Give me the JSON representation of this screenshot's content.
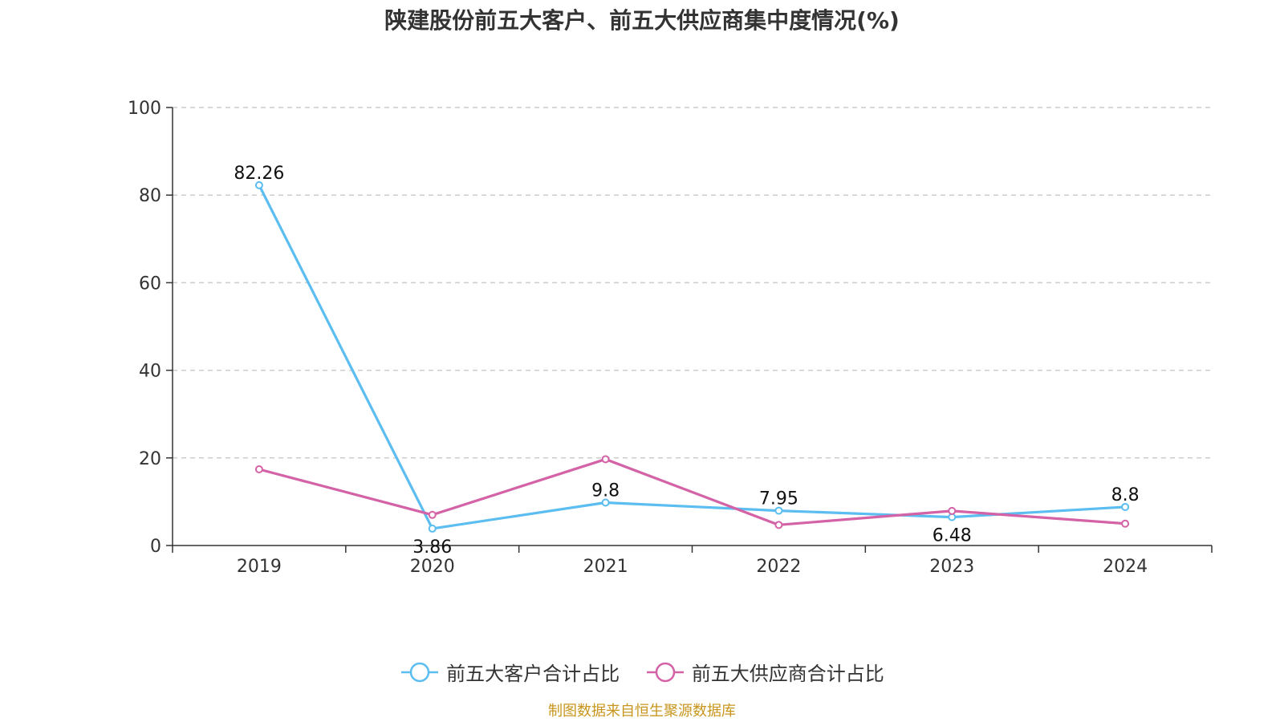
{
  "chart_data": {
    "type": "line",
    "title": "陕建股份前五大客户、前五大供应商集中度情况(%)",
    "categories": [
      "2019",
      "2020",
      "2021",
      "2022",
      "2023",
      "2024"
    ],
    "ylim": [
      0,
      100
    ],
    "yticks": [
      0,
      20,
      40,
      60,
      80,
      100
    ],
    "grid": "horizontal-dashed",
    "legend_position": "bottom",
    "series": [
      {
        "name": "前五大客户合计占比",
        "color": "#5bbdf0",
        "values": [
          82.26,
          3.86,
          9.8,
          7.95,
          6.48,
          8.8
        ],
        "labels": [
          "82.26",
          "3.86",
          "9.8",
          "7.95",
          "6.48",
          "8.8"
        ]
      },
      {
        "name": "前五大供应商合计占比",
        "color": "#d462a6",
        "values": [
          17.4,
          7.0,
          19.7,
          4.7,
          7.9,
          5.0
        ]
      }
    ]
  },
  "source": "制图数据来自恒生聚源数据库"
}
